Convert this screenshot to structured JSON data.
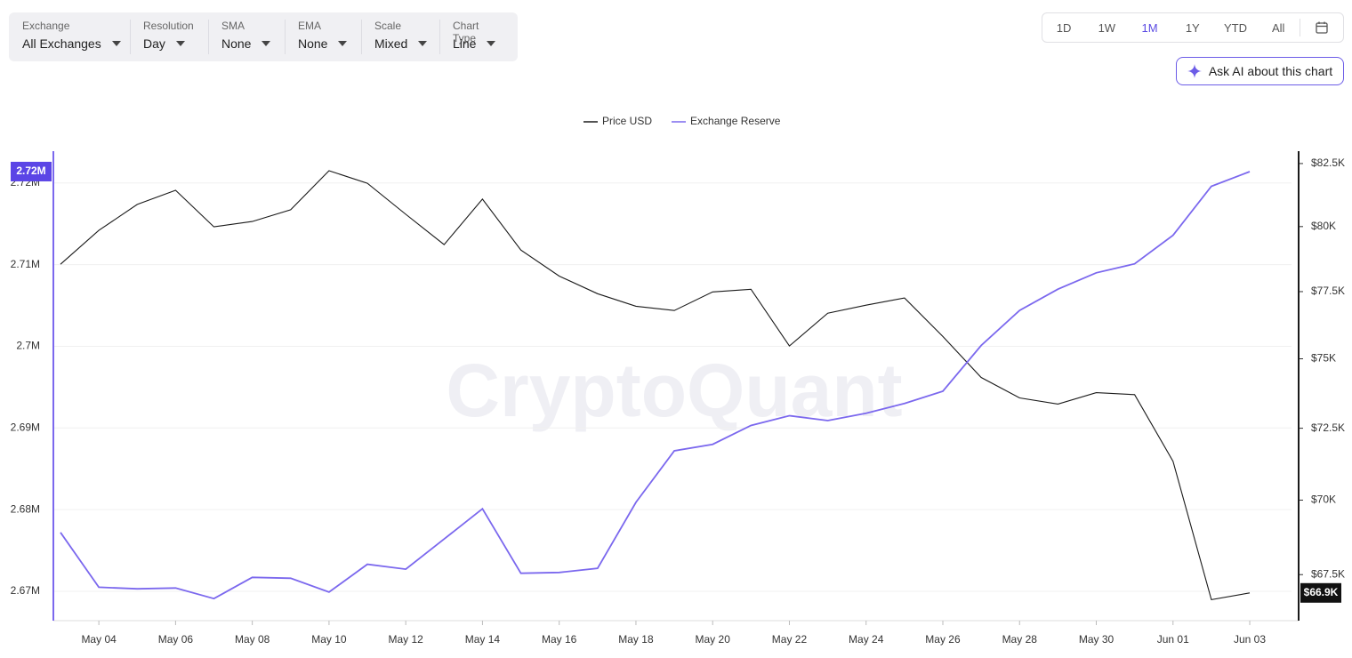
{
  "toolbar": {
    "controls": [
      {
        "label": "Exchange",
        "value": "All Exchanges"
      },
      {
        "label": "Resolution",
        "value": "Day"
      },
      {
        "label": "SMA",
        "value": "None"
      },
      {
        "label": "EMA",
        "value": "None"
      },
      {
        "label": "Scale",
        "value": "Mixed"
      },
      {
        "label": "Chart Type",
        "value": "Line"
      }
    ]
  },
  "ranges": {
    "buttons": [
      "1D",
      "1W",
      "1M",
      "1Y",
      "YTD",
      "All"
    ],
    "active": 2
  },
  "ai_button": "Ask AI about this chart",
  "chart_data": {
    "type": "line",
    "watermark": "CryptoQuant",
    "categories": [
      null,
      "May 04",
      null,
      "May 06",
      null,
      "May 08",
      null,
      "May 10",
      null,
      "May 12",
      null,
      "May 14",
      null,
      "May 16",
      null,
      "May 18",
      null,
      "May 20",
      null,
      "May 22",
      null,
      "May 24",
      null,
      "May 26",
      null,
      "May 28",
      null,
      "May 30",
      null,
      "Jun 01",
      null,
      "Jun 03"
    ],
    "series": [
      {
        "name": "Price USD",
        "color": "#1a1a1a",
        "axis": "y2",
        "last_label": "$66.9K",
        "values": [
          78540,
          79850,
          80870,
          81430,
          79990,
          80200,
          80660,
          82210,
          81710,
          80480,
          79300,
          81080,
          79090,
          78090,
          77420,
          76950,
          76790,
          77490,
          77590,
          75470,
          76690,
          76990,
          77260,
          75820,
          74320,
          73580,
          73360,
          73770,
          73700,
          71340,
          66680,
          66900
        ]
      },
      {
        "name": "Exchange Reserve",
        "color": "#7b68ee",
        "last_label": "2.72M",
        "values": [
          2677200,
          2670500,
          2670300,
          2670400,
          2669100,
          2671700,
          2671600,
          2669900,
          2673300,
          2672700,
          2676400,
          2680100,
          2672200,
          2672300,
          2672800,
          2680900,
          2687200,
          2688000,
          2690300,
          2691500,
          2690900,
          2691800,
          2693000,
          2694500,
          2700100,
          2704400,
          2707000,
          2709000,
          2710100,
          2713600,
          2719600,
          2721400
        ]
      }
    ],
    "ylim": [
      2666400,
      2723900
    ],
    "yticks": [
      {
        "value": 2670000,
        "label": "2.67M"
      },
      {
        "value": 2680000,
        "label": "2.68M"
      },
      {
        "value": 2690000,
        "label": "2.69M"
      },
      {
        "value": 2700000,
        "label": "2.7M"
      },
      {
        "value": 2710000,
        "label": "2.71M"
      },
      {
        "value": 2720000,
        "label": "2.72M"
      }
    ],
    "y2lim": [
      66000,
      83000
    ],
    "y2_log": true,
    "y2ticks": [
      {
        "value": 67500,
        "label": "$67.5K"
      },
      {
        "value": 70000,
        "label": "$70K"
      },
      {
        "value": 72500,
        "label": "$72.5K"
      },
      {
        "value": 75000,
        "label": "$75K"
      },
      {
        "value": 77500,
        "label": "$77.5K"
      },
      {
        "value": 80000,
        "label": "$80K"
      },
      {
        "value": 82500,
        "label": "$82.5K"
      }
    ],
    "grid": true
  }
}
